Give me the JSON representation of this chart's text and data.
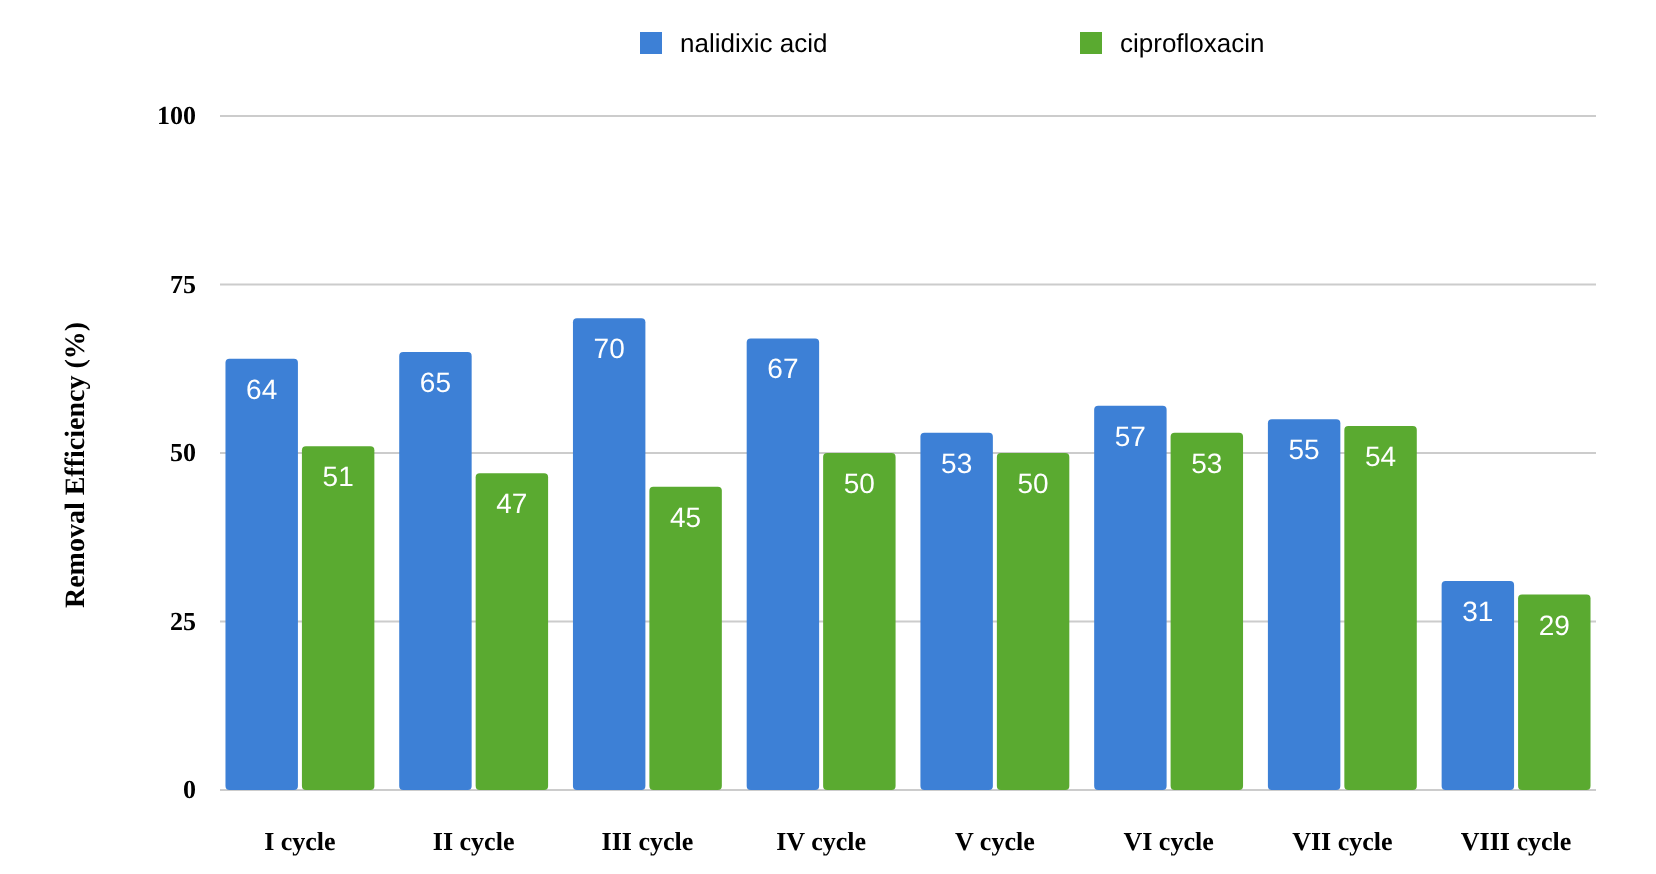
{
  "chart_data": {
    "type": "bar",
    "ylabel": "Removal Efficiency (%)",
    "categories": [
      "I cycle",
      "II cycle",
      "III cycle",
      "IV cycle",
      "V cycle",
      "VI cycle",
      "VII cycle",
      "VIII cycle"
    ],
    "series": [
      {
        "name": "nalidixic acid",
        "color": "#3d80d6",
        "values": [
          64,
          65,
          70,
          67,
          53,
          57,
          55,
          31
        ]
      },
      {
        "name": "ciprofloxacin",
        "color": "#5aaa30",
        "values": [
          51,
          47,
          45,
          50,
          50,
          53,
          54,
          29
        ]
      }
    ],
    "ylim": [
      0,
      100
    ],
    "yticks": [
      0,
      25,
      50,
      75,
      100
    ],
    "grid": "y",
    "legend": "top",
    "data_labels": true
  }
}
